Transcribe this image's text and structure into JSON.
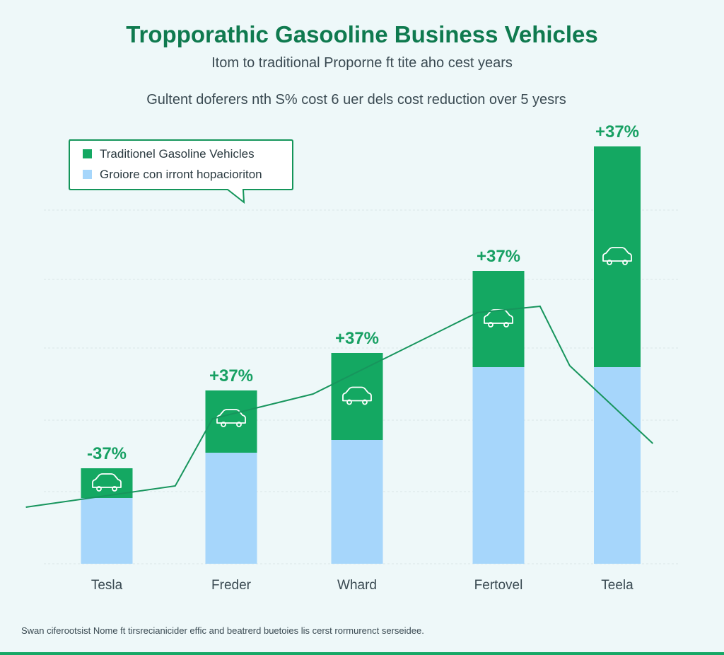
{
  "chart_data": {
    "type": "bar",
    "title": "Tropporathic Gasooline Business Vehicles",
    "subtitle": "Itom to traditional Proporne ft tite aho cest years",
    "subtitle2": "Gultent doferers nth S% cost 6 uer dels cost reduction over 5 yesrs",
    "categories": [
      "Tesla",
      "Freder",
      "Whard",
      "Fertovel",
      "Teela"
    ],
    "series": [
      {
        "name": "Groiore con irront hopacioriton",
        "values": [
          93,
          157,
          175,
          278,
          278
        ],
        "color": "#a6d6fb"
      },
      {
        "name": "Traditionel Gasoline Vehicles",
        "values": [
          42,
          88,
          123,
          136,
          312
        ],
        "color": "#14a862"
      }
    ],
    "bar_labels": [
      "-37%",
      "+37%",
      "+37%",
      "+37%",
      "+37%"
    ],
    "trend_line": [
      [
        -0.65,
        80
      ],
      [
        0.55,
        110
      ],
      [
        0.85,
        205
      ],
      [
        1.65,
        240
      ],
      [
        2.85,
        355
      ],
      [
        3.35,
        364
      ],
      [
        3.6,
        280
      ],
      [
        4.3,
        170
      ]
    ],
    "ylim": [
      0,
      600
    ],
    "grid": true,
    "legend_position": "top-left",
    "source_note": "Swan ciferootsist Nome ft tirsrecianicider effic and beatrerd buetoies lis cerst rormurenct serseidee.",
    "colors": {
      "title": "#0f7a4f",
      "accent": "#14a862",
      "light": "#a6d6fb"
    },
    "icon": "car-icon"
  }
}
